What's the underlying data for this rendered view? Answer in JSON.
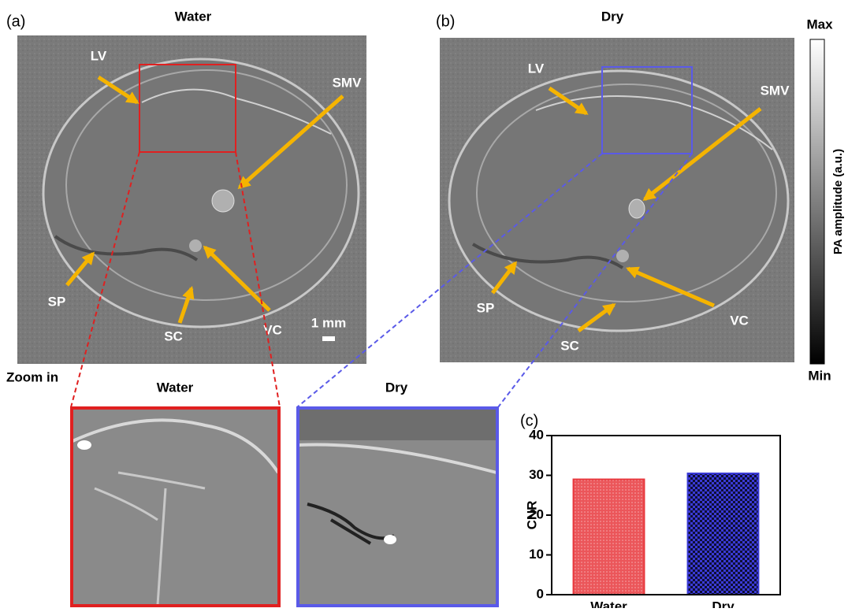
{
  "panels": [
    {
      "label": "(a)",
      "title": "Water",
      "annotations": [
        "LV",
        "SMV",
        "SP",
        "SC",
        "VC"
      ],
      "scale_bar": "1 mm"
    },
    {
      "label": "(b)",
      "title": "Dry",
      "annotations": [
        "LV",
        "SMV",
        "SP",
        "VC",
        "SC"
      ]
    }
  ],
  "colorbar": {
    "max": "Max",
    "min": "Min",
    "label": "PA amplitude (a.u.)"
  },
  "zoom": {
    "label": "Zoom in",
    "titles": [
      "Water",
      "Dry"
    ]
  },
  "chart_data": {
    "type": "bar",
    "panel_label": "(c)",
    "ylabel": "CNR",
    "categories": [
      "Water",
      "Dry"
    ],
    "values": [
      29,
      30.5
    ],
    "colors": [
      "#e8383d",
      "#3a3ad6"
    ],
    "ylim": [
      0,
      40
    ],
    "yticks": [
      0,
      10,
      20,
      30,
      40
    ]
  }
}
